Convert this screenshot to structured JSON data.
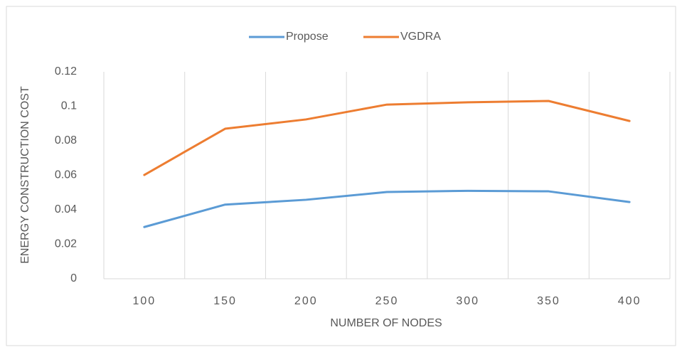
{
  "chart_data": {
    "type": "line",
    "x_label": "NUMBER OF NODES",
    "y_label": "ENERGY CONSTRUCTION COST",
    "categories": [
      "100",
      "150",
      "200",
      "250",
      "300",
      "350",
      "400"
    ],
    "series": [
      {
        "name": "Propose",
        "color": "#5b9bd5",
        "values": [
          0.03,
          0.043,
          0.0458,
          0.0503,
          0.051,
          0.0507,
          0.0445
        ]
      },
      {
        "name": "VGDRA",
        "color": "#ed7d31",
        "values": [
          0.0602,
          0.087,
          0.0924,
          0.101,
          0.1023,
          0.1031,
          0.0915
        ]
      }
    ],
    "ylim": [
      0,
      0.12
    ],
    "yticks": [
      0,
      0.02,
      0.04,
      0.06,
      0.08,
      0.1,
      0.12
    ],
    "grid": true,
    "legend": "top"
  }
}
